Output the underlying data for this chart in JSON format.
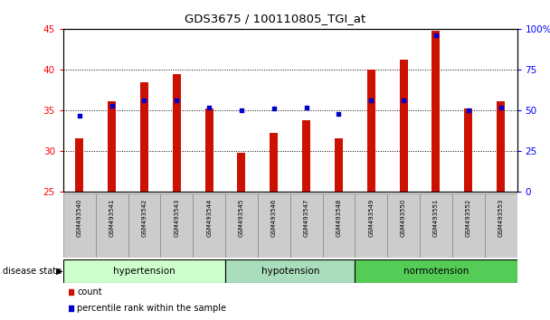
{
  "title": "GDS3675 / 100110805_TGI_at",
  "samples": [
    "GSM493540",
    "GSM493541",
    "GSM493542",
    "GSM493543",
    "GSM493544",
    "GSM493545",
    "GSM493546",
    "GSM493547",
    "GSM493548",
    "GSM493549",
    "GSM493550",
    "GSM493551",
    "GSM493552",
    "GSM493553"
  ],
  "counts": [
    31.6,
    36.1,
    38.5,
    39.5,
    35.2,
    29.8,
    32.2,
    33.8,
    31.6,
    40.0,
    41.2,
    44.8,
    35.2,
    36.1
  ],
  "percentiles": [
    47,
    53,
    56,
    56,
    52,
    50,
    51,
    52,
    48,
    56,
    56,
    96,
    50,
    52
  ],
  "bar_color": "#cc1100",
  "dot_color": "#0000cc",
  "ylim_left": [
    25,
    45
  ],
  "ylim_right": [
    0,
    100
  ],
  "yticks_left": [
    25,
    30,
    35,
    40,
    45
  ],
  "yticks_right": [
    0,
    25,
    50,
    75,
    100
  ],
  "ytick_labels_right": [
    "0",
    "25",
    "50",
    "75",
    "100%"
  ],
  "groups": [
    {
      "label": "hypertension",
      "start": 0,
      "end": 5,
      "color": "#ccffcc"
    },
    {
      "label": "hypotension",
      "start": 5,
      "end": 9,
      "color": "#aaddbb"
    },
    {
      "label": "normotension",
      "start": 9,
      "end": 14,
      "color": "#55cc55"
    }
  ],
  "disease_state_label": "disease state",
  "legend_count_label": "count",
  "legend_percentile_label": "percentile rank within the sample",
  "bg_color": "#ffffff",
  "bar_width": 0.25
}
